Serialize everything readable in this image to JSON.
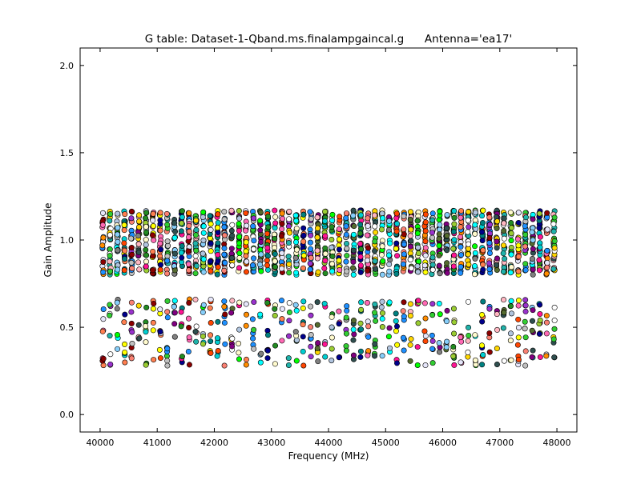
{
  "chart_data": {
    "type": "scatter",
    "title": "G table: Dataset-1-Qband.ms.finalampgaincal.g      Antenna='ea17'",
    "xlabel": "Frequency (MHz)",
    "ylabel": "Gain Amplitude",
    "xlim": [
      39650,
      48350
    ],
    "ylim": [
      -0.1,
      2.1
    ],
    "xticks": [
      "40000",
      "41000",
      "42000",
      "43000",
      "44000",
      "45000",
      "46000",
      "47000",
      "48000"
    ],
    "yticks": [
      "0.0",
      "0.5",
      "1.0",
      "1.5",
      "2.0"
    ],
    "grid": false,
    "marker_edge_color": "#000000",
    "columns": {
      "x_start": 40050,
      "x_end": 47950,
      "count": 64,
      "group_size": 8,
      "palette": [
        "#1e90ff",
        "#ff1493",
        "#2f4f4f",
        "#8b0000",
        "#228b22",
        "#ffd700",
        "#ff8c00",
        "#9acd32",
        "#ffb6c1",
        "#ff69b4",
        "#fffacd",
        "#ffffff",
        "#e6e6fa",
        "#b0c4de",
        "#20b2aa",
        "#ff7f50",
        "#00ff00",
        "#32cd32",
        "#ffff00",
        "#00ffff",
        "#9932cc",
        "#ff4500",
        "#87cefa",
        "#1e90ff",
        "#00008b",
        "#808080",
        "#c0c0c0",
        "#008080",
        "#800080",
        "#fa8072",
        "#00ced1",
        "#556b2f"
      ]
    },
    "series": [
      {
        "values_range_high": [
          0.8,
          1.17
        ]
      },
      {
        "values_range_low": [
          0.28,
          0.66
        ]
      }
    ]
  }
}
